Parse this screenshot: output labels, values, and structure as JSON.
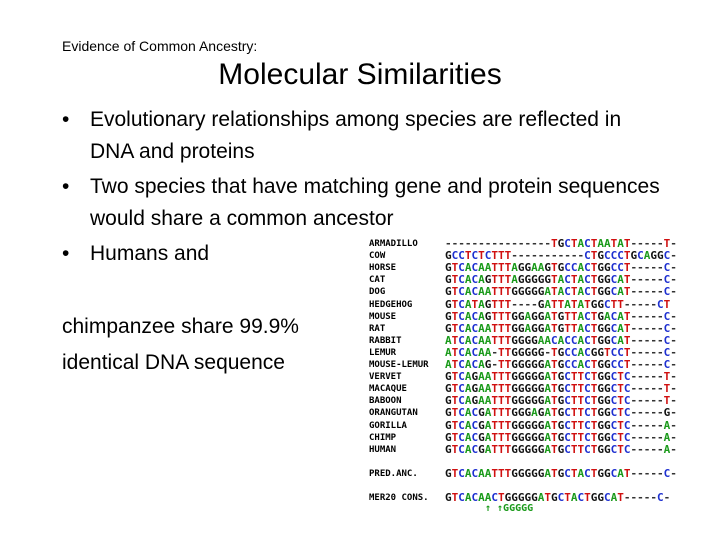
{
  "header": {
    "subtitle": "Evidence of Common Ancestry:",
    "title": "Molecular Similarities"
  },
  "bullets": [
    "Evolutionary relationships among species are reflected in DNA and proteins",
    "Two species that have matching gene and protein sequences would share a common ancestor",
    "Humans and"
  ],
  "continuation": [
    "chimpanzee share 99.9%",
    "identical DNA sequence"
  ],
  "alignment": {
    "rows": [
      {
        "species": "ARMADILLO",
        "sequence": "----------------TGCTACTAATAT-----T-"
      },
      {
        "species": "COW",
        "sequence": "GCCTCTCTTT-----------CTGCCCTGCAGGC-"
      },
      {
        "species": "HORSE",
        "sequence": "GTCACAATTTAGGAAGTGCCACTGGCCT-----C-"
      },
      {
        "species": "CAT",
        "sequence": "GTCACAGTTTAGGGGGTACTACTGGCAT-----C-"
      },
      {
        "species": "DOG",
        "sequence": "GTCACAATTTGGGGGATACTACTGGCAT-----C-"
      },
      {
        "species": "HEDGEHOG",
        "sequence": "GTCATAGTTT----GATTATATGGCTT-----CT"
      },
      {
        "species": "MOUSE",
        "sequence": "GTCACAGTTTGGAGGATGTTACTGACAT-----C-"
      },
      {
        "species": "RAT",
        "sequence": "GTCACAATTTGGAGGATGTTACTGGCAT-----C-"
      },
      {
        "species": "RABBIT",
        "sequence": "ATCACAATTTGGGGAACACCACTGGCAT-----C-"
      },
      {
        "species": "LEMUR",
        "sequence": "ATCACAA-TTGGGGG-TGCCACGGTCCT-----C-"
      },
      {
        "species": "MOUSE-LEMUR",
        "sequence": "ATCACAG-TTGGGGGATGCCACTGGCCT-----C-"
      },
      {
        "species": "VERVET",
        "sequence": "GTCAGAATTTGGGGGATGCTTCTGGCTC-----T-"
      },
      {
        "species": "MACAQUE",
        "sequence": "GTCAGAATTTGGGGGATGCTTCTGGCTC-----T-"
      },
      {
        "species": "BABOON",
        "sequence": "GTCAGAATTTGGGGGATGCTTCTGGCTC-----T-"
      },
      {
        "species": "ORANGUTAN",
        "sequence": "GTCACGATTTGGGAGATGCTTCTGGCTC-----G-"
      },
      {
        "species": "GORILLA",
        "sequence": "GTCACGATTTGGGGGATGCTTCTGGCTC-----A-"
      },
      {
        "species": "CHIMP",
        "sequence": "GTCACGATTTGGGGGATGCTTCTGGCTC-----A-"
      },
      {
        "species": "HUMAN",
        "sequence": "GTCACGATTTGGGGGATGCTTCTGGCTC-----A-"
      },
      {
        "species": "PRED.ANC.",
        "sequence": "GTCACAATTTGGGGGATGCTACTGGCAT-----C-"
      },
      {
        "species": "MER20 CONS.",
        "sequence": "GTCACAACTGGGGGATGCTACTGGCAT-----C-"
      }
    ],
    "note": "↑ ↑GGGGG"
  }
}
